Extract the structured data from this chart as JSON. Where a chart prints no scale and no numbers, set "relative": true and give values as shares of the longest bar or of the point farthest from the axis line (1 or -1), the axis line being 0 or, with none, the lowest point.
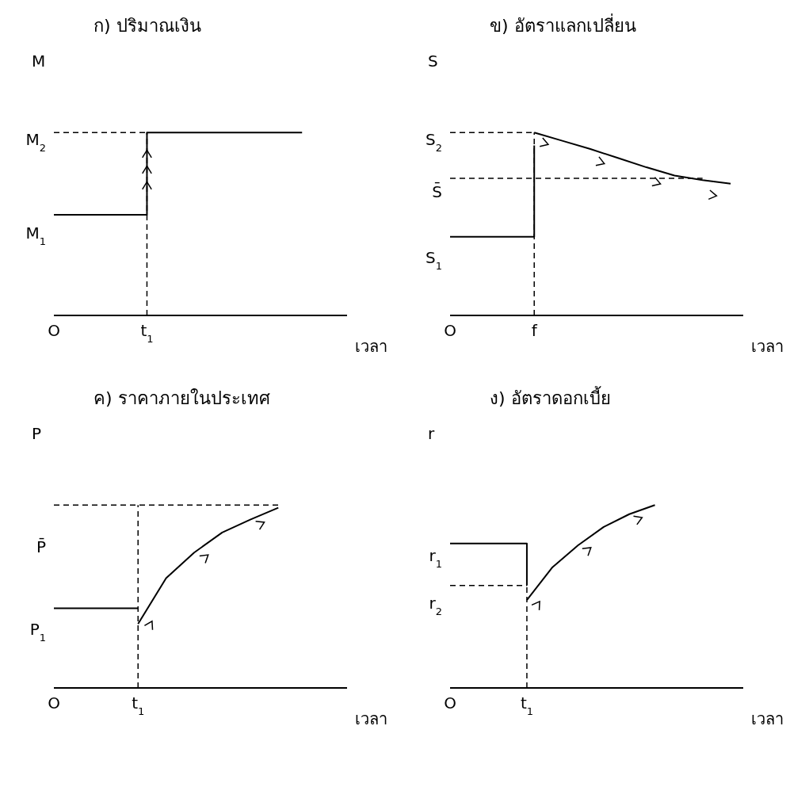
{
  "chart_data": [
    {
      "type": "line",
      "title": "ก) ปริมาณเงิน",
      "xlabel": "เวลา",
      "ylabel": "M",
      "relative": true,
      "marker": "none",
      "categories": [
        "O",
        null,
        null,
        "t$_{1}$",
        null,
        null,
        null,
        null,
        null,
        null
      ],
      "series": [
        {
          "color": "#000000",
          "line_style": "dashed",
          "values": [
            1,
            1,
            1,
            1,
            null,
            null,
            null,
            null,
            null,
            null
          ]
        },
        {
          "type": "step",
          "color": "#000000",
          "line_style": "solid",
          "values": [
            0.55,
            0.55,
            0.55,
            1,
            1,
            1,
            1,
            1,
            1,
            null
          ]
        }
      ],
      "ref_lines": [
        {
          "axis": "x",
          "value": "t$_{1}$",
          "line_style": "dashed",
          "color": "#000000"
        }
      ],
      "annotations": [
        "M$_{2}$",
        "M$_{1}$"
      ]
    },
    {
      "type": "line",
      "title": "ข) อัตราแลกเปลี่ยน",
      "xlabel": "เวลา",
      "ylabel": "S",
      "relative": true,
      "marker": "none",
      "categories": [
        "O",
        null,
        null,
        "f",
        null,
        null,
        null,
        null,
        null,
        null,
        null
      ],
      "series": [
        {
          "color": "#000000",
          "line_style": "dashed",
          "values": [
            1,
            1,
            1,
            1,
            null,
            null,
            null,
            null,
            null,
            null,
            null
          ]
        },
        {
          "color": "#000000",
          "line_style": "dashed",
          "values": [
            0.75,
            0.75,
            0.75,
            0.75,
            0.75,
            0.75,
            0.75,
            0.75,
            0.75,
            0.75,
            null
          ]
        },
        {
          "type": "step",
          "color": "#000000",
          "line_style": "solid",
          "values": [
            0.43,
            0.43,
            0.43,
            0.93,
            null,
            null,
            null,
            null,
            null,
            null,
            null
          ]
        },
        {
          "color": "#000000",
          "line_style": "solid",
          "values": [
            null,
            null,
            null,
            1,
            0.955,
            0.91,
            0.86,
            0.81,
            0.765,
            0.74,
            0.72
          ]
        }
      ],
      "ref_lines": [
        {
          "axis": "x",
          "value": "f",
          "line_style": "dashed",
          "color": "#000000"
        }
      ],
      "annotations": [
        "S$_{2}$",
        "S̄",
        "S$_{1}$"
      ]
    },
    {
      "type": "line",
      "title": "ค) ราคาภายในประเทศ",
      "xlabel": "เวลา",
      "ylabel": "P",
      "relative": true,
      "marker": "none",
      "categories": [
        "O",
        null,
        null,
        "t$_{1}$",
        null,
        null,
        null,
        null,
        null,
        null,
        null
      ],
      "series": [
        {
          "color": "#000000",
          "line_style": "dashed",
          "values": [
            1,
            1,
            1,
            1,
            1,
            1,
            1,
            1,
            1,
            null,
            null
          ]
        },
        {
          "color": "#000000",
          "line_style": "solid",
          "values": [
            0.435,
            0.435,
            0.435,
            0.435,
            null,
            null,
            null,
            null,
            null,
            null,
            null
          ]
        },
        {
          "color": "#000000",
          "line_style": "solid",
          "values": [
            null,
            null,
            null,
            0.35,
            0.6,
            0.74,
            0.85,
            0.92,
            0.985,
            null,
            null
          ]
        }
      ],
      "ref_lines": [
        {
          "axis": "x",
          "value": "t$_{1}$",
          "line_style": "dashed",
          "color": "#000000"
        }
      ],
      "annotations": [
        "P̄",
        "P$_{1}$"
      ]
    },
    {
      "type": "line",
      "title": "ง) อัตราดอกเบี้ย",
      "xlabel": "เวลา",
      "ylabel": "r",
      "relative": true,
      "marker": "none",
      "categories": [
        "O",
        null,
        null,
        "t$_{1}$",
        null,
        null,
        null,
        null,
        null,
        null,
        null,
        null
      ],
      "series": [
        {
          "color": "#000000",
          "line_style": "dashed",
          "values": [
            0.56,
            0.56,
            0.56,
            0.56,
            null,
            null,
            null,
            null,
            null,
            null,
            null,
            null
          ]
        },
        {
          "type": "step",
          "color": "#000000",
          "line_style": "solid",
          "values": [
            0.79,
            0.79,
            0.79,
            0.56,
            null,
            null,
            null,
            null,
            null,
            null,
            null,
            null
          ]
        },
        {
          "color": "#000000",
          "line_style": "solid",
          "values": [
            null,
            null,
            null,
            0.48,
            0.66,
            0.78,
            0.88,
            0.95,
            1,
            null,
            null,
            null
          ]
        }
      ],
      "ref_lines": [
        {
          "axis": "x",
          "value": "t$_{1}$",
          "line_style": "dashed",
          "color": "#000000"
        }
      ],
      "annotations": [
        "r$_{1}$",
        "r$_{2}$"
      ]
    }
  ]
}
